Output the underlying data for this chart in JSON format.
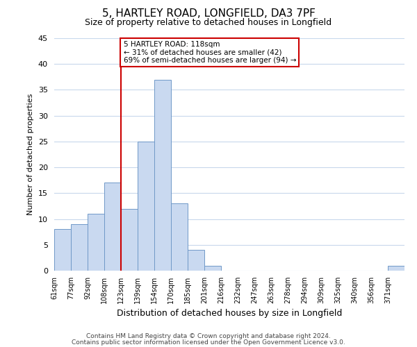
{
  "title1": "5, HARTLEY ROAD, LONGFIELD, DA3 7PF",
  "title2": "Size of property relative to detached houses in Longfield",
  "xlabel": "Distribution of detached houses by size in Longfield",
  "ylabel": "Number of detached properties",
  "bin_labels": [
    "61sqm",
    "77sqm",
    "92sqm",
    "108sqm",
    "123sqm",
    "139sqm",
    "154sqm",
    "170sqm",
    "185sqm",
    "201sqm",
    "216sqm",
    "232sqm",
    "247sqm",
    "263sqm",
    "278sqm",
    "294sqm",
    "309sqm",
    "325sqm",
    "340sqm",
    "356sqm",
    "371sqm"
  ],
  "bar_heights": [
    8,
    9,
    11,
    17,
    12,
    25,
    37,
    13,
    4,
    1,
    0,
    0,
    0,
    0,
    0,
    0,
    0,
    0,
    0,
    0,
    1
  ],
  "bar_color": "#c9d9f0",
  "bar_edge_color": "#7099c8",
  "vline_x_index": 4,
  "vline_color": "#cc0000",
  "annotation_title": "5 HARTLEY ROAD: 118sqm",
  "annotation_line1": "← 31% of detached houses are smaller (42)",
  "annotation_line2": "69% of semi-detached houses are larger (94) →",
  "annotation_box_color": "#ffffff",
  "annotation_box_edge": "#cc0000",
  "ylim": [
    0,
    45
  ],
  "yticks": [
    0,
    5,
    10,
    15,
    20,
    25,
    30,
    35,
    40,
    45
  ],
  "footer1": "Contains HM Land Registry data © Crown copyright and database right 2024.",
  "footer2": "Contains public sector information licensed under the Open Government Licence v3.0.",
  "background_color": "#ffffff",
  "grid_color": "#c8d8ec"
}
